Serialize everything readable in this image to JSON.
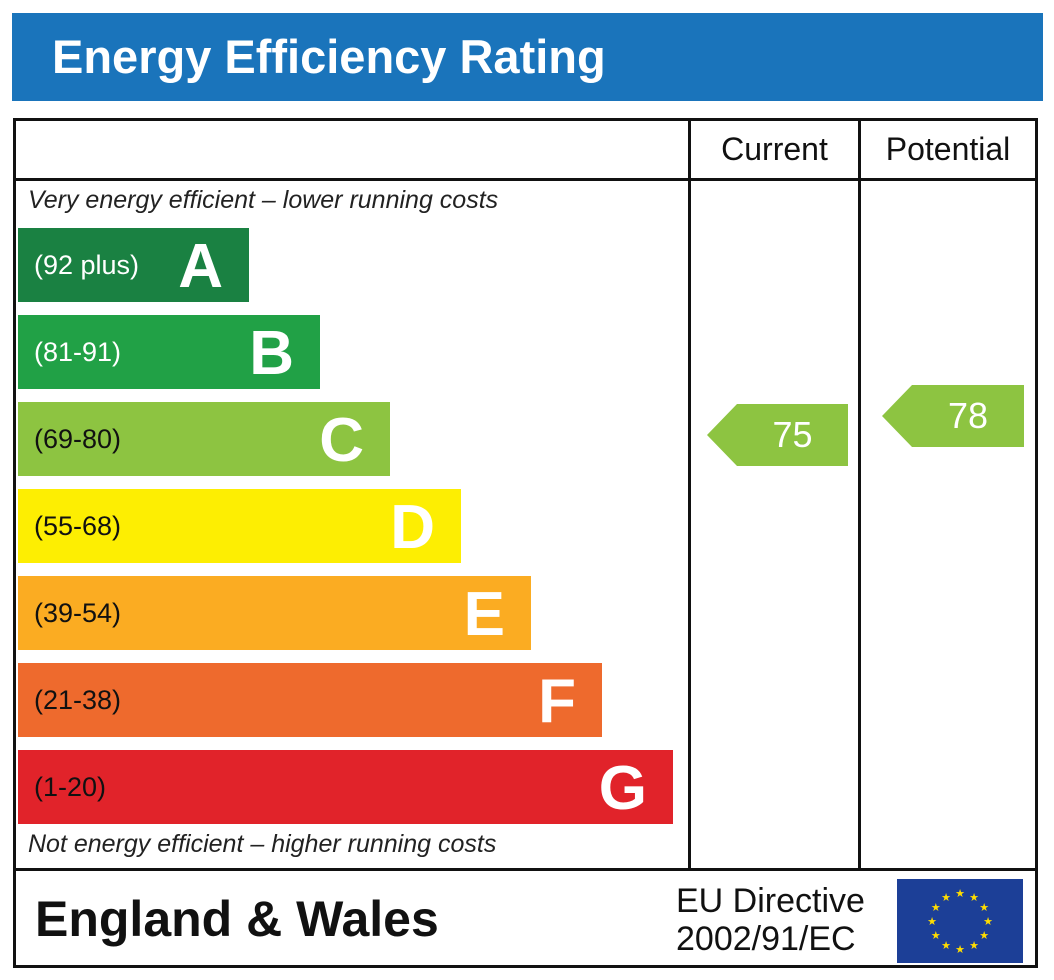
{
  "header": {
    "title": "Energy Efficiency Rating"
  },
  "columns": {
    "current": "Current",
    "potential": "Potential"
  },
  "captions": {
    "top": "Very energy efficient – lower running costs",
    "bottom": "Not energy efficient – higher running costs"
  },
  "chart_data": {
    "type": "bar",
    "categories": [
      "A",
      "B",
      "C",
      "D",
      "E",
      "F",
      "G"
    ],
    "bands": [
      {
        "letter": "A",
        "range": "(92 plus)",
        "min": 92,
        "max": 100,
        "color": "#1a8142",
        "text_color": "#ffffff"
      },
      {
        "letter": "B",
        "range": "(81-91)",
        "min": 81,
        "max": 91,
        "color": "#21a146",
        "text_color": "#ffffff"
      },
      {
        "letter": "C",
        "range": "(69-80)",
        "min": 69,
        "max": 80,
        "color": "#8dc441",
        "text_color": "#111111"
      },
      {
        "letter": "D",
        "range": "(55-68)",
        "min": 55,
        "max": 68,
        "color": "#fdee02",
        "text_color": "#111111"
      },
      {
        "letter": "E",
        "range": "(39-54)",
        "min": 39,
        "max": 54,
        "color": "#fbac22",
        "text_color": "#111111"
      },
      {
        "letter": "F",
        "range": "(21-38)",
        "min": 21,
        "max": 38,
        "color": "#ee6a2d",
        "text_color": "#111111"
      },
      {
        "letter": "G",
        "range": "(1-20)",
        "min": 1,
        "max": 20,
        "color": "#e1232a",
        "text_color": "#111111"
      }
    ],
    "current": {
      "value": 75,
      "band": "C",
      "color": "#8dc441"
    },
    "potential": {
      "value": 78,
      "band": "C",
      "color": "#8dc441"
    }
  },
  "footer": {
    "region": "England & Wales",
    "directive_line1": "EU Directive",
    "directive_line2": "2002/91/EC",
    "flag_icon": "eu-flag-icon"
  }
}
